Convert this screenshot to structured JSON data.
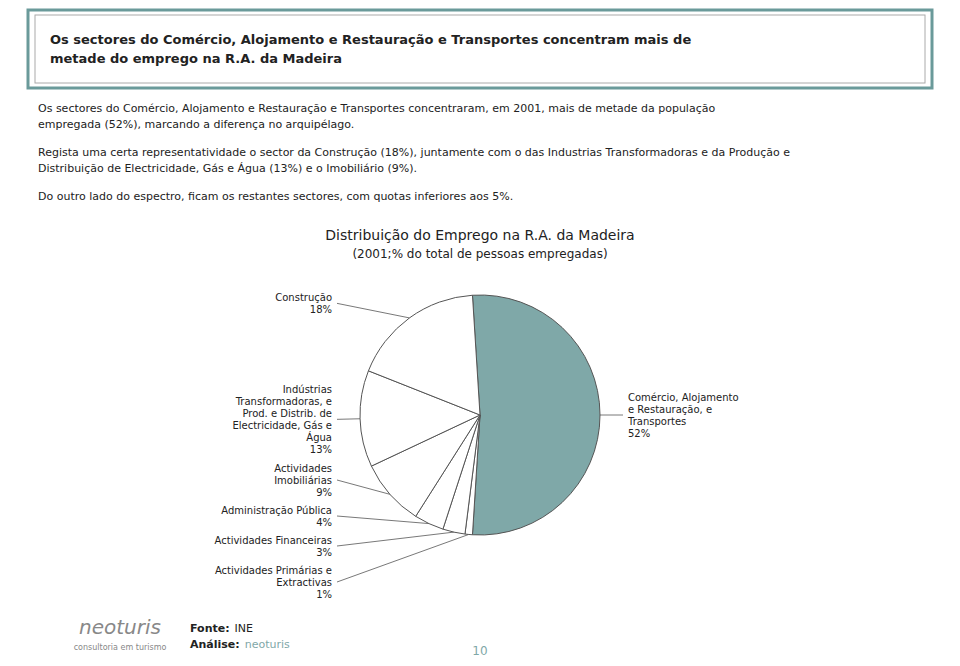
{
  "chart_data": {
    "type": "pie",
    "title": "Distribuição do Emprego na R.A. da Madeira",
    "subtitle": "(2001;% do total de pessoas empregadas)",
    "categories": [
      "Comércio, Alojamento\ne Restauração, e\nTransportes",
      "Actividades Primárias e\nExtractivas",
      "Actividades Financeiras",
      "Administração Pública",
      "Actividades\nImobiliárias",
      "Indústrias\nTransformadoras, e\nProd. e Distrib. de\nElectricidade, Gás e\nÁgua",
      "Construção"
    ],
    "values": [
      52,
      1,
      3,
      4,
      9,
      13,
      18
    ],
    "value_labels": [
      "52%",
      "1%",
      "3%",
      "4%",
      "9%",
      "13%",
      "18%"
    ],
    "data_labels": true,
    "colors": [
      "#7fa8a8",
      "#ffffff",
      "#ffffff",
      "#ffffff",
      "#ffffff",
      "#ffffff",
      "#ffffff"
    ]
  },
  "heading": "Os sectores do Comércio, Alojamento e Restauração e Transportes concentram mais de\nmetade do emprego na R.A. da Madeira",
  "paragraphs": [
    "Os sectores do Comércio, Alojamento e Restauração e Transportes concentraram, em 2001, mais de metade da população\nempregada (52%), marcando a diferença no arquipélago.",
    "Regista uma certa representatividade o sector da Construção (18%), juntamente com o das Industrias Transformadoras e da Produção e\nDistribuição de Electricidade, Gás e Água (13%) e o Imobiliário (9%).",
    "Do outro lado do espectro, ficam os restantes sectores, com quotas inferiores aos 5%."
  ],
  "footer": {
    "brand": "neoturis",
    "tagline": "consultoria em turismo",
    "source_label": "Fonte:",
    "source": "INE",
    "analysis_label": "Análise:",
    "analysis": "neoturis",
    "page_number": "10"
  }
}
